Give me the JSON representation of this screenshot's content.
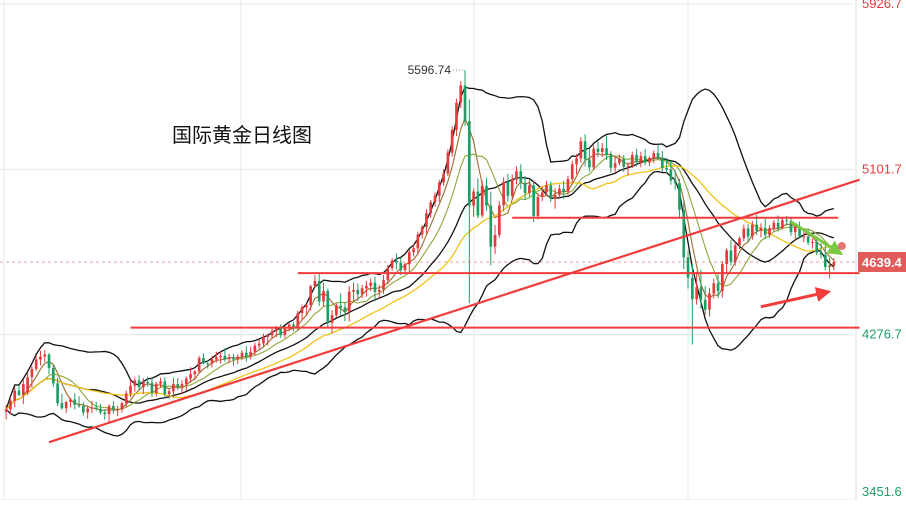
{
  "chart_data": {
    "type": "candlestick",
    "title": "国际黄金日线图",
    "ylim": [
      3451.6,
      5926.7
    ],
    "y_ticks": [
      {
        "value": 5926.7,
        "label": "5926.7",
        "color": "#e33b3b"
      },
      {
        "value": 5101.7,
        "label": "5101.7",
        "color": "#e33b3b"
      },
      {
        "value": 4276.7,
        "label": "4276.7",
        "color": "#1e9e64"
      },
      {
        "value": 3451.6,
        "label": "3451.6",
        "color": "#1e9e64"
      }
    ],
    "current_price": {
      "value": 4639.4,
      "label": "4639.4"
    },
    "peak": {
      "value": 5596.74,
      "label": "5596.74",
      "index": 107
    },
    "colors": {
      "up": "#e33b3b",
      "down": "#1e9e64",
      "boll": "#111111",
      "ma_fast": "#9c6b2c",
      "ma_mid": "#8aa83a",
      "ma_slow": "#f0c419",
      "trend": "#f03c3c",
      "arrow_down": "#7ac943",
      "grid": "#e8e8e8",
      "current": "#e35a5a"
    },
    "horizontal_levels": [
      {
        "value": 4312,
        "from_index": 29,
        "to_index": 199
      },
      {
        "value": 4584,
        "from_index": 68,
        "to_index": 199
      },
      {
        "value": 4860,
        "from_index": 118,
        "to_index": 194
      }
    ],
    "trend_line": {
      "from": {
        "index": 10,
        "value": 3740
      },
      "to": {
        "index": 199,
        "value": 5050
      }
    },
    "arrows": [
      {
        "direction": "down",
        "from": {
          "index": 183,
          "value": 4840
        },
        "to": {
          "index": 194,
          "value": 4690
        }
      },
      {
        "direction": "up",
        "from": {
          "index": 176,
          "value": 4416
        },
        "to": {
          "index": 191,
          "value": 4487
        }
      }
    ],
    "candles": [
      [
        3892.5,
        3926.5,
        3854.2,
        3904.0
      ],
      [
        3904.0,
        3965.2,
        3879.7,
        3946.6
      ],
      [
        3946.6,
        4016.9,
        3914.9,
        3997.7
      ],
      [
        3997.7,
        4022.1,
        3972.0,
        3974.2
      ],
      [
        3974.2,
        4052.6,
        3929.9,
        4030.9
      ],
      [
        3987.5,
        4085.1,
        3975.0,
        4064.4
      ],
      [
        4064.4,
        4120.4,
        4011.6,
        4106.1
      ],
      [
        4106.1,
        4173.5,
        4095.9,
        4152.6
      ],
      [
        4152.6,
        4196.5,
        4122.8,
        4167.4
      ],
      [
        4167.4,
        4199.5,
        4141.4,
        4177.4
      ],
      [
        4177.4,
        4184.7,
        4079.4,
        4110.3
      ],
      [
        4110.3,
        4128.9,
        4016.5,
        4033.7
      ],
      [
        4033.7,
        4060.4,
        3920.8,
        3935.0
      ],
      [
        3935.0,
        3982.2,
        3901.4,
        3909.7
      ],
      [
        3909.7,
        3946.2,
        3886.1,
        3940.5
      ],
      [
        3940.5,
        3961.8,
        3914.1,
        3953.0
      ],
      [
        3953.0,
        3983.6,
        3903.9,
        3926.3
      ],
      [
        3926.3,
        3969.1,
        3910.9,
        3920.4
      ],
      [
        3920.4,
        3939.8,
        3872.6,
        3888.4
      ],
      [
        3888.4,
        3921.6,
        3856.6,
        3907.5
      ],
      [
        3907.5,
        3945.6,
        3884.8,
        3913.3
      ],
      [
        3913.3,
        3941.4,
        3896.4,
        3907.0
      ],
      [
        3907.0,
        3931.4,
        3878.8,
        3889.0
      ],
      [
        3889.0,
        3904.3,
        3852.5,
        3880.8
      ],
      [
        3880.8,
        3929.5,
        3834.1,
        3920.3
      ],
      [
        3920.3,
        3944.6,
        3883.5,
        3904.6
      ],
      [
        3904.6,
        3921.2,
        3869.0,
        3905.5
      ],
      [
        3905.5,
        3942.4,
        3886.9,
        3935.1
      ],
      [
        3935.1,
        3997.6,
        3913.8,
        3983.5
      ],
      [
        3983.5,
        4050.3,
        3964.3,
        4021.5
      ],
      [
        4021.5,
        4062.3,
        3991.7,
        4048.2
      ],
      [
        4048.2,
        4074.3,
        3999.1,
        4014.6
      ],
      [
        4014.6,
        4060.3,
        3981.4,
        4040.4
      ],
      [
        4040.4,
        4066.3,
        4016.1,
        4036.3
      ],
      [
        4036.3,
        4059.3,
        3966.1,
        3985.4
      ],
      [
        3985.4,
        4041.4,
        3968.3,
        4032.2
      ],
      [
        4032.2,
        4061.4,
        4011.7,
        4043.4
      ],
      [
        4043.4,
        4064.3,
        3967.8,
        3979.5
      ],
      [
        3979.5,
        4007.5,
        3957.0,
        3994.3
      ],
      [
        3994.3,
        4060.7,
        3961.1,
        4030.1
      ],
      [
        4030.1,
        4059.6,
        4000.1,
        4017.6
      ],
      [
        4017.6,
        4048.9,
        3978.1,
        4029.8
      ],
      [
        4029.8,
        4068.7,
        3996.6,
        4058.1
      ],
      [
        4058.1,
        4114.2,
        4036.2,
        4079.7
      ],
      [
        4079.7,
        4099.6,
        4050.3,
        4093.5
      ],
      [
        4093.5,
        4170.8,
        4085.4,
        4160.0
      ],
      [
        4160.0,
        4183.5,
        4128.4,
        4133.7
      ],
      [
        4133.7,
        4149.1,
        4107.3,
        4132.3
      ],
      [
        4132.3,
        4169.1,
        4113.1,
        4153.3
      ],
      [
        4153.3,
        4191.7,
        4136.9,
        4164.2
      ],
      [
        4164.2,
        4195.1,
        4132.0,
        4170.5
      ],
      [
        4170.5,
        4209.8,
        4142.8,
        4154.2
      ],
      [
        4154.2,
        4181.4,
        4134.6,
        4163.4
      ],
      [
        4163.4,
        4180.9,
        4120.7,
        4152.5
      ],
      [
        4152.5,
        4178.3,
        4129.4,
        4166.5
      ],
      [
        4166.5,
        4198.3,
        4149.8,
        4186.3
      ],
      [
        4186.3,
        4218.4,
        4142.0,
        4170.1
      ],
      [
        4170.1,
        4216.3,
        4153.0,
        4191.3
      ],
      [
        4191.3,
        4236.6,
        4172.2,
        4221.9
      ],
      [
        4221.9,
        4249.7,
        4201.2,
        4232.2
      ],
      [
        4232.2,
        4281.6,
        4218.1,
        4265.6
      ],
      [
        4265.6,
        4282.5,
        4222.8,
        4273.7
      ],
      [
        4273.7,
        4309.1,
        4255.4,
        4293.6
      ],
      [
        4293.6,
        4320.6,
        4264.6,
        4307.4
      ],
      [
        4307.4,
        4328.3,
        4260.6,
        4274.9
      ],
      [
        4274.9,
        4317.8,
        4259.3,
        4309.5
      ],
      [
        4309.5,
        4332.7,
        4292.2,
        4327.4
      ],
      [
        4327.4,
        4339.6,
        4293.2,
        4315.5
      ],
      [
        4315.5,
        4396.1,
        4294.0,
        4384.9
      ],
      [
        4384.9,
        4425.8,
        4347.5,
        4413.6
      ],
      [
        4413.6,
        4431.1,
        4375.9,
        4425.2
      ],
      [
        4425.2,
        4525.6,
        4398.0,
        4518.6
      ],
      [
        4518.6,
        4573.4,
        4508.4,
        4544.9
      ],
      [
        4544.9,
        4585.1,
        4420.3,
        4442.1
      ],
      [
        4442.1,
        4536.0,
        4418.1,
        4494.1
      ],
      [
        4494.1,
        4506.8,
        4309.1,
        4336.4
      ],
      [
        4336.4,
        4398.3,
        4283.0,
        4373.7
      ],
      [
        4373.7,
        4432.4,
        4361.2,
        4422.3
      ],
      [
        4422.3,
        4483.4,
        4372.5,
        4412.3
      ],
      [
        4412.3,
        4435.7,
        4343.2,
        4391.9
      ],
      [
        4391.9,
        4519.1,
        4342.1,
        4491.3
      ],
      [
        4491.3,
        4536.6,
        4441.6,
        4499.6
      ],
      [
        4499.6,
        4531.8,
        4444.7,
        4478.1
      ],
      [
        4478.1,
        4524.4,
        4459.3,
        4508.1
      ],
      [
        4508.1,
        4545.0,
        4466.1,
        4520.3
      ],
      [
        4520.3,
        4557.9,
        4493.0,
        4535.6
      ],
      [
        4535.6,
        4566.6,
        4451.4,
        4490.3
      ],
      [
        4490.3,
        4525.2,
        4458.5,
        4500.0
      ],
      [
        4500.0,
        4574.0,
        4480.4,
        4549.1
      ],
      [
        4549.1,
        4624.8,
        4529.4,
        4608.5
      ],
      [
        4608.5,
        4658.4,
        4595.4,
        4645.4
      ],
      [
        4645.4,
        4682.3,
        4602.2,
        4635.9
      ],
      [
        4635.9,
        4660.9,
        4574.0,
        4598.8
      ],
      [
        4598.8,
        4635.5,
        4586.2,
        4628.4
      ],
      [
        4628.4,
        4703.4,
        4588.9,
        4688.2
      ],
      [
        4688.2,
        4729.7,
        4667.1,
        4707.4
      ],
      [
        4707.4,
        4791.3,
        4676.4,
        4776.9
      ],
      [
        4776.9,
        4824.2,
        4756.4,
        4814.1
      ],
      [
        4814.1,
        4902.4,
        4779.8,
        4882.1
      ],
      [
        4882.1,
        4949.3,
        4859.3,
        4937.0
      ],
      [
        4937.0,
        4987.1,
        4915.3,
        4970.0
      ],
      [
        4970.0,
        5049.5,
        4938.4,
        5036.2
      ],
      [
        5036.2,
        5102.6,
        5019.8,
        5080.1
      ],
      [
        5080.1,
        5201.4,
        5068.6,
        5185.0
      ],
      [
        5185.0,
        5317.1,
        5165.1,
        5298.8
      ],
      [
        5298.8,
        5454.3,
        5267.6,
        5433.8
      ],
      [
        5433.8,
        5540.6,
        5407.5,
        5520.0
      ],
      [
        5520.0,
        5596.7,
        5317.7,
        5342.5
      ],
      [
        5342.5,
        5450.1,
        4434.0,
        4920.7
      ],
      [
        4920.7,
        5005.6,
        4865.6,
        4990.6
      ],
      [
        4990.6,
        5057.1,
        4857.4,
        4871.5
      ],
      [
        4871.5,
        5044.2,
        4859.8,
        5019.5
      ],
      [
        5019.5,
        5059.0,
        4894.2,
        4921.1
      ],
      [
        4921.1,
        4990.6,
        4622.9,
        4716.2
      ],
      [
        4716.2,
        4824.2,
        4679.2,
        4774.2
      ],
      [
        4774.2,
        4943.4,
        4761.1,
        4922.1
      ],
      [
        4922.1,
        5061.1,
        4892.4,
        5038.2
      ],
      [
        5038.2,
        5079.7,
        4939.7,
        4969.6
      ],
      [
        4969.6,
        5076.1,
        4951.7,
        5050.7
      ],
      [
        5050.7,
        5115.7,
        5026.2,
        5092.0
      ],
      [
        5092.0,
        5127.0,
        5002.6,
        5034.7
      ],
      [
        5034.7,
        5068.1,
        4950.3,
        4983.5
      ],
      [
        4983.5,
        5047.4,
        4964.7,
        5021.2
      ],
      [
        5021.2,
        5044.3,
        4838.0,
        4868.4
      ],
      [
        4868.4,
        4983.0,
        4851.8,
        4963.6
      ],
      [
        4963.6,
        5016.3,
        4942.9,
        4987.0
      ],
      [
        4987.0,
        5044.1,
        4971.2,
        5022.2
      ],
      [
        5022.2,
        5041.0,
        4938.3,
        4956.0
      ],
      [
        4956.0,
        5007.5,
        4905.3,
        4974.3
      ],
      [
        4974.3,
        5025.1,
        4954.3,
        5004.4
      ],
      [
        5004.4,
        5043.6,
        4953.5,
        4989.2
      ],
      [
        4989.2,
        5069.9,
        4973.7,
        5053.0
      ],
      [
        5053.0,
        5144.5,
        5031.2,
        5127.1
      ],
      [
        5127.1,
        5177.6,
        5076.5,
        5156.1
      ],
      [
        5156.1,
        5261.5,
        5134.0,
        5241.4
      ],
      [
        5241.4,
        5277.0,
        5115.8,
        5151.7
      ],
      [
        5151.7,
        5207.7,
        5091.4,
        5111.9
      ],
      [
        5111.9,
        5222.3,
        5097.8,
        5204.0
      ],
      [
        5204.0,
        5239.6,
        5161.9,
        5188.5
      ],
      [
        5188.5,
        5233.6,
        5163.2,
        5207.3
      ],
      [
        5207.3,
        5268.8,
        5148.4,
        5172.6
      ],
      [
        5172.6,
        5191.9,
        5085.8,
        5110.1
      ],
      [
        5110.1,
        5165.6,
        5085.0,
        5132.7
      ],
      [
        5132.7,
        5176.7,
        5120.7,
        5153.2
      ],
      [
        5153.2,
        5173.5,
        5088.4,
        5113.9
      ],
      [
        5113.9,
        5136.4,
        5071.5,
        5119.3
      ],
      [
        5119.3,
        5190.2,
        5108.0,
        5173.6
      ],
      [
        5173.6,
        5205.0,
        5116.3,
        5137.3
      ],
      [
        5137.3,
        5189.9,
        5111.9,
        5167.5
      ],
      [
        5167.5,
        5201.8,
        5121.8,
        5135.3
      ],
      [
        5135.3,
        5166.8,
        5118.0,
        5158.2
      ],
      [
        5158.2,
        5196.3,
        5132.7,
        5183.1
      ],
      [
        5183.1,
        5222.9,
        5150.1,
        5160.5
      ],
      [
        5160.5,
        5193.2,
        5088.0,
        5108.4
      ],
      [
        5108.4,
        5159.8,
        5082.5,
        5100.3
      ],
      [
        5100.3,
        5143.5,
        5025.2,
        5046.2
      ],
      [
        5046.2,
        5097.0,
        5000.6,
        5032.8
      ],
      [
        5032.8,
        5054.0,
        4854.4,
        4899.8
      ],
      [
        4899.8,
        4945.8,
        4604.3,
        4662.4
      ],
      [
        4662.4,
        4693.7,
        4506.2,
        4561.2
      ],
      [
        4561.2,
        4629.4,
        4227.4,
        4453.1
      ],
      [
        4453.1,
        4591.6,
        4426.4,
        4513.8
      ],
      [
        4513.8,
        4601.1,
        4407.4,
        4450.7
      ],
      [
        4450.7,
        4519.3,
        4374.7,
        4401.0
      ],
      [
        4401.0,
        4510.6,
        4367.5,
        4481.7
      ],
      [
        4481.7,
        4556.3,
        4458.2,
        4533.3
      ],
      [
        4533.3,
        4577.4,
        4459.9,
        4493.8
      ],
      [
        4493.8,
        4644.1,
        4461.3,
        4628.9
      ],
      [
        4628.9,
        4708.1,
        4586.9,
        4697.0
      ],
      [
        4697.0,
        4748.8,
        4621.5,
        4640.1
      ],
      [
        4640.1,
        4738.8,
        4622.1,
        4722.5
      ],
      [
        4722.5,
        4766.8,
        4703.9,
        4757.3
      ],
      [
        4757.3,
        4825.8,
        4744.0,
        4806.2
      ],
      [
        4806.2,
        4828.5,
        4740.3,
        4766.8
      ],
      [
        4766.8,
        4844.0,
        4749.9,
        4825.8
      ],
      [
        4825.8,
        4874.3,
        4774.3,
        4795.0
      ],
      [
        4795.0,
        4832.4,
        4762.0,
        4810.1
      ],
      [
        4810.1,
        4854.0,
        4753.3,
        4774.4
      ],
      [
        4774.4,
        4823.4,
        4759.9,
        4807.7
      ],
      [
        4807.7,
        4848.5,
        4792.1,
        4835.1
      ],
      [
        4835.1,
        4871.3,
        4790.6,
        4808.5
      ],
      [
        4808.5,
        4863.1,
        4801.6,
        4847.7
      ],
      [
        4847.7,
        4868.3,
        4821.6,
        4842.9
      ],
      [
        4842.9,
        4857.6,
        4770.1,
        4788.1
      ],
      [
        4788.1,
        4832.2,
        4744.0,
        4816.9
      ],
      [
        4816.9,
        4840.2,
        4761.3,
        4766.4
      ],
      [
        4766.4,
        4798.6,
        4738.4,
        4766.7
      ],
      [
        4766.7,
        4806.2,
        4723.5,
        4737.7
      ],
      [
        4737.7,
        4756.1,
        4706.8,
        4739.2
      ],
      [
        4739.2,
        4767.4,
        4673.7,
        4685.5
      ],
      [
        4685.5,
        4731.4,
        4657.6,
        4675.8
      ],
      [
        4675.8,
        4732.9,
        4597.0,
        4614.1
      ],
      [
        4614.1,
        4659.2,
        4557.2,
        4621.4
      ],
      [
        4621.4,
        4658.7,
        4598.4,
        4639.4
      ]
    ]
  }
}
